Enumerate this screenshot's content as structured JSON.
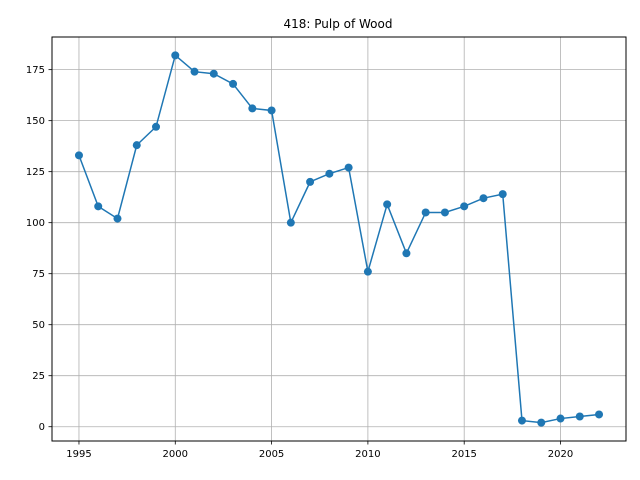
{
  "chart_data": {
    "type": "line",
    "title": "418: Pulp of Wood",
    "xlabel": "",
    "ylabel": "",
    "x": [
      1995,
      1996,
      1997,
      1998,
      1999,
      2000,
      2001,
      2002,
      2003,
      2004,
      2005,
      2006,
      2007,
      2008,
      2009,
      2010,
      2011,
      2012,
      2013,
      2014,
      2015,
      2016,
      2017,
      2018,
      2019,
      2020,
      2021,
      2022
    ],
    "series": [
      {
        "values": [
          133,
          108,
          102,
          138,
          147,
          182,
          174,
          173,
          168,
          156,
          155,
          100,
          120,
          124,
          127,
          76,
          109,
          85,
          105,
          105,
          108,
          112,
          114,
          3,
          2,
          4,
          5,
          6
        ]
      }
    ],
    "xlim": [
      1993.6,
      2023.4
    ],
    "ylim": [
      -7.0,
      191.0
    ],
    "xticks": [
      "1995",
      "2000",
      "2005",
      "2010",
      "2015",
      "2020"
    ],
    "yticks": [
      "0",
      "25",
      "50",
      "75",
      "100",
      "125",
      "150",
      "175"
    ],
    "grid": true,
    "line_color": "#1f77b4",
    "marker": "circle"
  }
}
